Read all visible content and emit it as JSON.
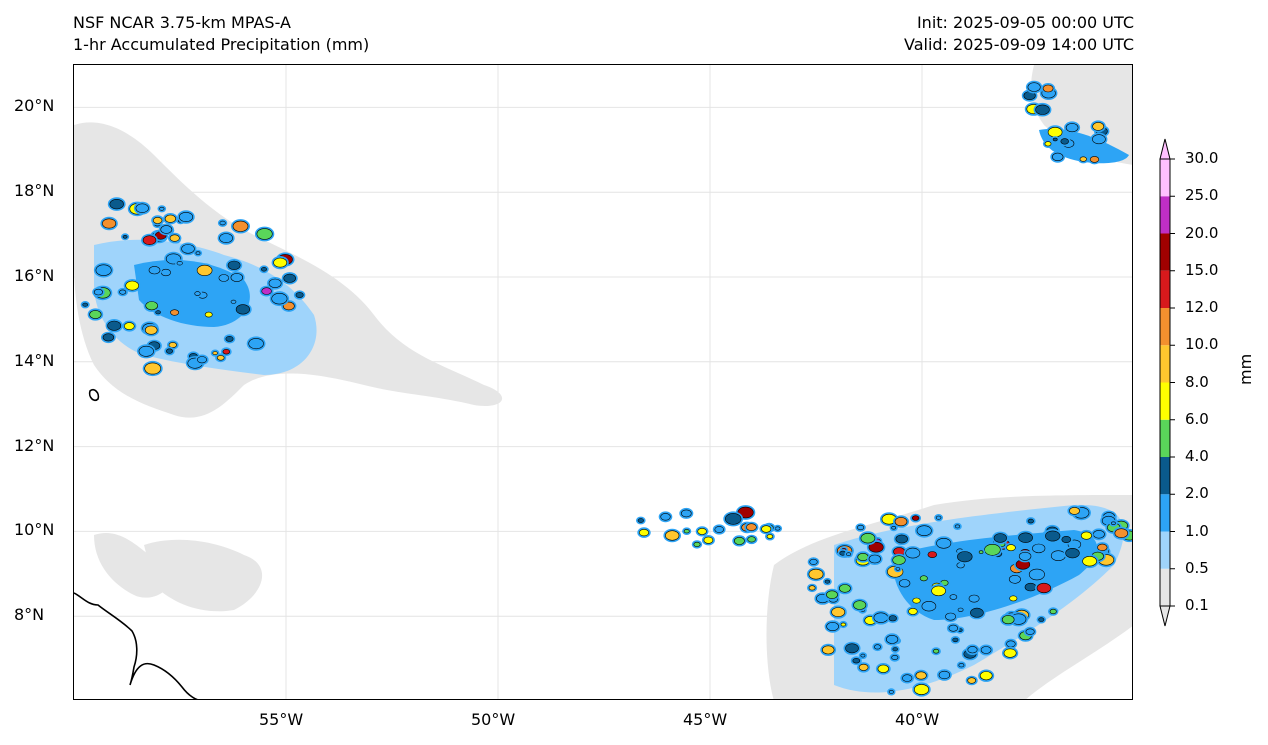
{
  "header": {
    "model_title": "NSF NCAR 3.75-km MPAS-A",
    "field_title": "1-hr Accumulated Precipitation (mm)",
    "init": "Init: 2025-09-05 00:00 UTC",
    "valid": "Valid: 2025-09-09 14:00 UTC"
  },
  "map": {
    "lon_range": [
      -60,
      -35
    ],
    "lat_range": [
      6,
      21
    ],
    "lon_ticks": [
      {
        "value": -55,
        "label": "55°W"
      },
      {
        "value": -50,
        "label": "50°W"
      },
      {
        "value": -45,
        "label": "45°W"
      },
      {
        "value": -40,
        "label": "40°W"
      }
    ],
    "lat_ticks": [
      {
        "value": 20,
        "label": "20°N"
      },
      {
        "value": 18,
        "label": "18°N"
      },
      {
        "value": 16,
        "label": "16°N"
      },
      {
        "value": 14,
        "label": "14°N"
      },
      {
        "value": 12,
        "label": "12°N"
      },
      {
        "value": 10,
        "label": "10°N"
      },
      {
        "value": 8,
        "label": "8°N"
      }
    ],
    "gridlines": true
  },
  "colorbar": {
    "unit": "mm",
    "labels": [
      "0.1",
      "0.5",
      "1.0",
      "2.0",
      "4.0",
      "6.0",
      "8.0",
      "10.0",
      "12.0",
      "15.0",
      "20.0",
      "25.0",
      "30.0"
    ],
    "colors": [
      "#e6e6e6",
      "#9fd4fb",
      "#2da4f5",
      "#0a5a8c",
      "#5ad65a",
      "#ffff00",
      "#ffc72e",
      "#f3902e",
      "#d7191c",
      "#a00000",
      "#c02ec6",
      "#ffc0ff"
    ],
    "extend": "both"
  }
}
